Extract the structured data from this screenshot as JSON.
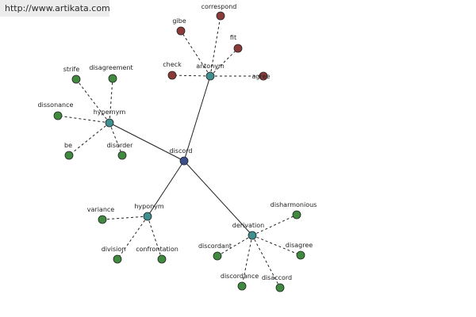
{
  "banner": {
    "url_text": "http://www.artikata.com"
  },
  "colors": {
    "center": "#3a4f8c",
    "relation": "#3f8f8f",
    "antonym_leaf": "#8b3a3a",
    "leaf": "#3f8a3f"
  },
  "graph": {
    "center": {
      "label": "discord"
    },
    "relations": [
      {
        "id": "antonym",
        "label": "antonym",
        "leaves": [
          {
            "label": "gibe"
          },
          {
            "label": "correspond"
          },
          {
            "label": "fit"
          },
          {
            "label": "check"
          },
          {
            "label": "agree"
          }
        ]
      },
      {
        "id": "hypernym",
        "label": "hypernym",
        "leaves": [
          {
            "label": "strife"
          },
          {
            "label": "disagreement"
          },
          {
            "label": "dissonance"
          },
          {
            "label": "be"
          },
          {
            "label": "disorder"
          }
        ]
      },
      {
        "id": "hyponym",
        "label": "hyponym",
        "leaves": [
          {
            "label": "variance"
          },
          {
            "label": "division"
          },
          {
            "label": "confrontation"
          }
        ]
      },
      {
        "id": "derivation",
        "label": "derivation",
        "leaves": [
          {
            "label": "disharmonious"
          },
          {
            "label": "discordant"
          },
          {
            "label": "disagree"
          },
          {
            "label": "discordance"
          },
          {
            "label": "disaccord"
          }
        ]
      }
    ]
  }
}
